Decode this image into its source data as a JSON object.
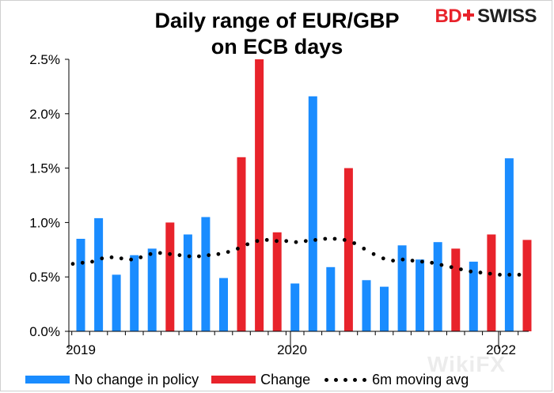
{
  "title_line1": "Daily range of EUR/GBP",
  "title_line2": "on ECB days",
  "logo": {
    "part1": "BD",
    "part2": "SWISS",
    "icon": "swiss-cross-icon"
  },
  "watermark": "WikiFX",
  "colors": {
    "no_change": "#1a8cff",
    "change": "#e8232b",
    "moving_avg": "#000000"
  },
  "chart_data": {
    "type": "bar",
    "title": "Daily range of EUR/GBP on ECB days",
    "ylim": [
      0,
      2.5
    ],
    "yticks": [
      "0.0%",
      "0.5%",
      "1.0%",
      "1.5%",
      "2.0%",
      "2.5%"
    ],
    "xticks": [
      "2019",
      "2020",
      "2022"
    ],
    "grid": false,
    "legend_position": "bottom",
    "series": [
      {
        "name": "No change in policy",
        "kind": "bar"
      },
      {
        "name": "Change",
        "kind": "bar"
      },
      {
        "name": "6m moving avg",
        "kind": "dotted-line"
      }
    ],
    "bars": [
      {
        "value": 0.85,
        "policy": "no_change"
      },
      {
        "value": 1.04,
        "policy": "no_change"
      },
      {
        "value": 0.52,
        "policy": "no_change"
      },
      {
        "value": 0.7,
        "policy": "no_change"
      },
      {
        "value": 0.76,
        "policy": "no_change"
      },
      {
        "value": 1.0,
        "policy": "change"
      },
      {
        "value": 0.89,
        "policy": "no_change"
      },
      {
        "value": 1.05,
        "policy": "no_change"
      },
      {
        "value": 0.49,
        "policy": "no_change"
      },
      {
        "value": 1.6,
        "policy": "change"
      },
      {
        "value": 2.5,
        "policy": "change"
      },
      {
        "value": 0.91,
        "policy": "change"
      },
      {
        "value": 0.44,
        "policy": "no_change"
      },
      {
        "value": 2.16,
        "policy": "no_change"
      },
      {
        "value": 0.59,
        "policy": "no_change"
      },
      {
        "value": 1.5,
        "policy": "change"
      },
      {
        "value": 0.47,
        "policy": "no_change"
      },
      {
        "value": 0.41,
        "policy": "no_change"
      },
      {
        "value": 0.79,
        "policy": "no_change"
      },
      {
        "value": 0.66,
        "policy": "no_change"
      },
      {
        "value": 0.82,
        "policy": "no_change"
      },
      {
        "value": 0.76,
        "policy": "change"
      },
      {
        "value": 0.64,
        "policy": "no_change"
      },
      {
        "value": 0.89,
        "policy": "change"
      },
      {
        "value": 1.59,
        "policy": "no_change"
      },
      {
        "value": 0.84,
        "policy": "change"
      }
    ],
    "moving_avg": [
      0.62,
      0.63,
      0.64,
      0.67,
      0.68,
      0.67,
      0.66,
      0.68,
      0.71,
      0.72,
      0.71,
      0.7,
      0.69,
      0.69,
      0.7,
      0.71,
      0.73,
      0.76,
      0.8,
      0.83,
      0.84,
      0.83,
      0.83,
      0.82,
      0.83,
      0.84,
      0.85,
      0.85,
      0.84,
      0.81,
      0.76,
      0.71,
      0.67,
      0.65,
      0.66,
      0.65,
      0.64,
      0.63,
      0.61,
      0.59,
      0.57,
      0.55,
      0.54,
      0.53,
      0.52,
      0.52,
      0.52
    ]
  }
}
